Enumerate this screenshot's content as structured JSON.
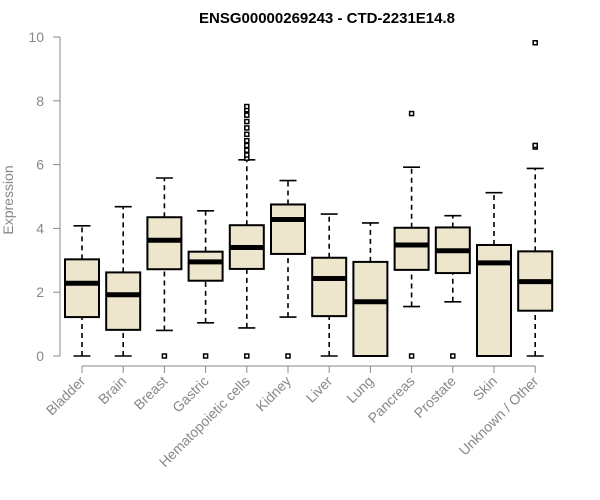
{
  "chart_data": {
    "type": "box",
    "title": "ENSG00000269243 - CTD-2231E14.8",
    "xlabel": "",
    "ylabel": "Expression",
    "ylim": [
      0,
      10
    ],
    "yticks": [
      0,
      2,
      4,
      6,
      8,
      10
    ],
    "grid": false,
    "categories": [
      "Bladder",
      "Brain",
      "Breast",
      "Gastric",
      "Hematopoietic cells",
      "Kidney",
      "Liver",
      "Lung",
      "Pancreas",
      "Prostate",
      "Skin",
      "Unknown / Other"
    ],
    "boxes": [
      {
        "min": 0,
        "q1": 1.22,
        "median": 2.28,
        "q3": 3.03,
        "max": 4.08,
        "outliers": []
      },
      {
        "min": 0,
        "q1": 0.82,
        "median": 1.92,
        "q3": 2.62,
        "max": 4.68,
        "outliers": []
      },
      {
        "min": 0.8,
        "q1": 2.72,
        "median": 3.63,
        "q3": 4.35,
        "max": 5.58,
        "outliers": [
          0
        ]
      },
      {
        "min": 1.04,
        "q1": 2.36,
        "median": 2.95,
        "q3": 3.27,
        "max": 4.55,
        "outliers": [
          0
        ]
      },
      {
        "min": 0.88,
        "q1": 2.73,
        "median": 3.4,
        "q3": 4.1,
        "max": 6.15,
        "outliers": [
          0,
          6.2,
          6.3,
          6.45,
          6.6,
          6.75,
          6.95,
          7.15,
          7.35,
          7.55,
          7.72,
          7.82
        ]
      },
      {
        "min": 1.22,
        "q1": 3.2,
        "median": 4.28,
        "q3": 4.75,
        "max": 5.5,
        "outliers": [
          0
        ]
      },
      {
        "min": 0,
        "q1": 1.25,
        "median": 2.43,
        "q3": 3.08,
        "max": 4.45,
        "outliers": []
      },
      {
        "min": 0,
        "q1": 0,
        "median": 1.7,
        "q3": 2.95,
        "max": 4.17,
        "outliers": []
      },
      {
        "min": 1.55,
        "q1": 2.7,
        "median": 3.48,
        "q3": 4.02,
        "max": 5.92,
        "outliers": [
          0,
          7.6
        ]
      },
      {
        "min": 1.7,
        "q1": 2.6,
        "median": 3.3,
        "q3": 4.03,
        "max": 4.4,
        "outliers": [
          0
        ]
      },
      {
        "min": 0,
        "q1": 0,
        "median": 2.92,
        "q3": 3.48,
        "max": 5.12,
        "outliers": []
      },
      {
        "min": 0,
        "q1": 1.42,
        "median": 2.33,
        "q3": 3.28,
        "max": 5.88,
        "outliers": [
          6.55,
          6.6,
          9.82
        ]
      }
    ]
  }
}
